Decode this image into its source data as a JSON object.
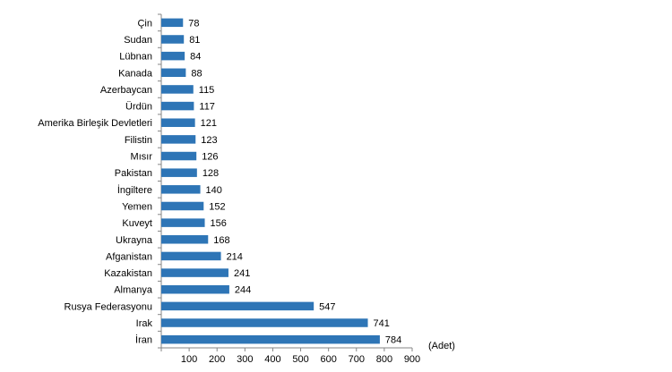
{
  "chart_data": {
    "type": "bar",
    "orientation": "horizontal",
    "categories": [
      "Çin",
      "Sudan",
      "Lübnan",
      "Kanada",
      "Azerbaycan",
      "Ürdün",
      "Amerika Birleşik Devletleri",
      "Filistin",
      "Mısır",
      "Pakistan",
      "İngiltere",
      "Yemen",
      "Kuveyt",
      "Ukrayna",
      "Afganistan",
      "Kazakistan",
      "Almanya",
      "Rusya Federasyonu",
      "Irak",
      "İran"
    ],
    "values": [
      78,
      81,
      84,
      88,
      115,
      117,
      121,
      123,
      126,
      128,
      140,
      152,
      156,
      168,
      214,
      241,
      244,
      547,
      741,
      784
    ],
    "value_labels": [
      "78",
      "81",
      "84",
      "88",
      "115",
      "117",
      "121",
      "123",
      "126",
      "128",
      "140",
      "152",
      "156",
      "168",
      "214",
      "241",
      "244",
      "547",
      "741",
      "784"
    ],
    "xticks": [
      "100",
      "200",
      "300",
      "400",
      "500",
      "600",
      "700",
      "800",
      "900"
    ],
    "xlim": [
      0,
      900
    ],
    "unit_label": "(Adet)",
    "bar_color": "#2e75b6",
    "grid": false,
    "legend": false
  }
}
